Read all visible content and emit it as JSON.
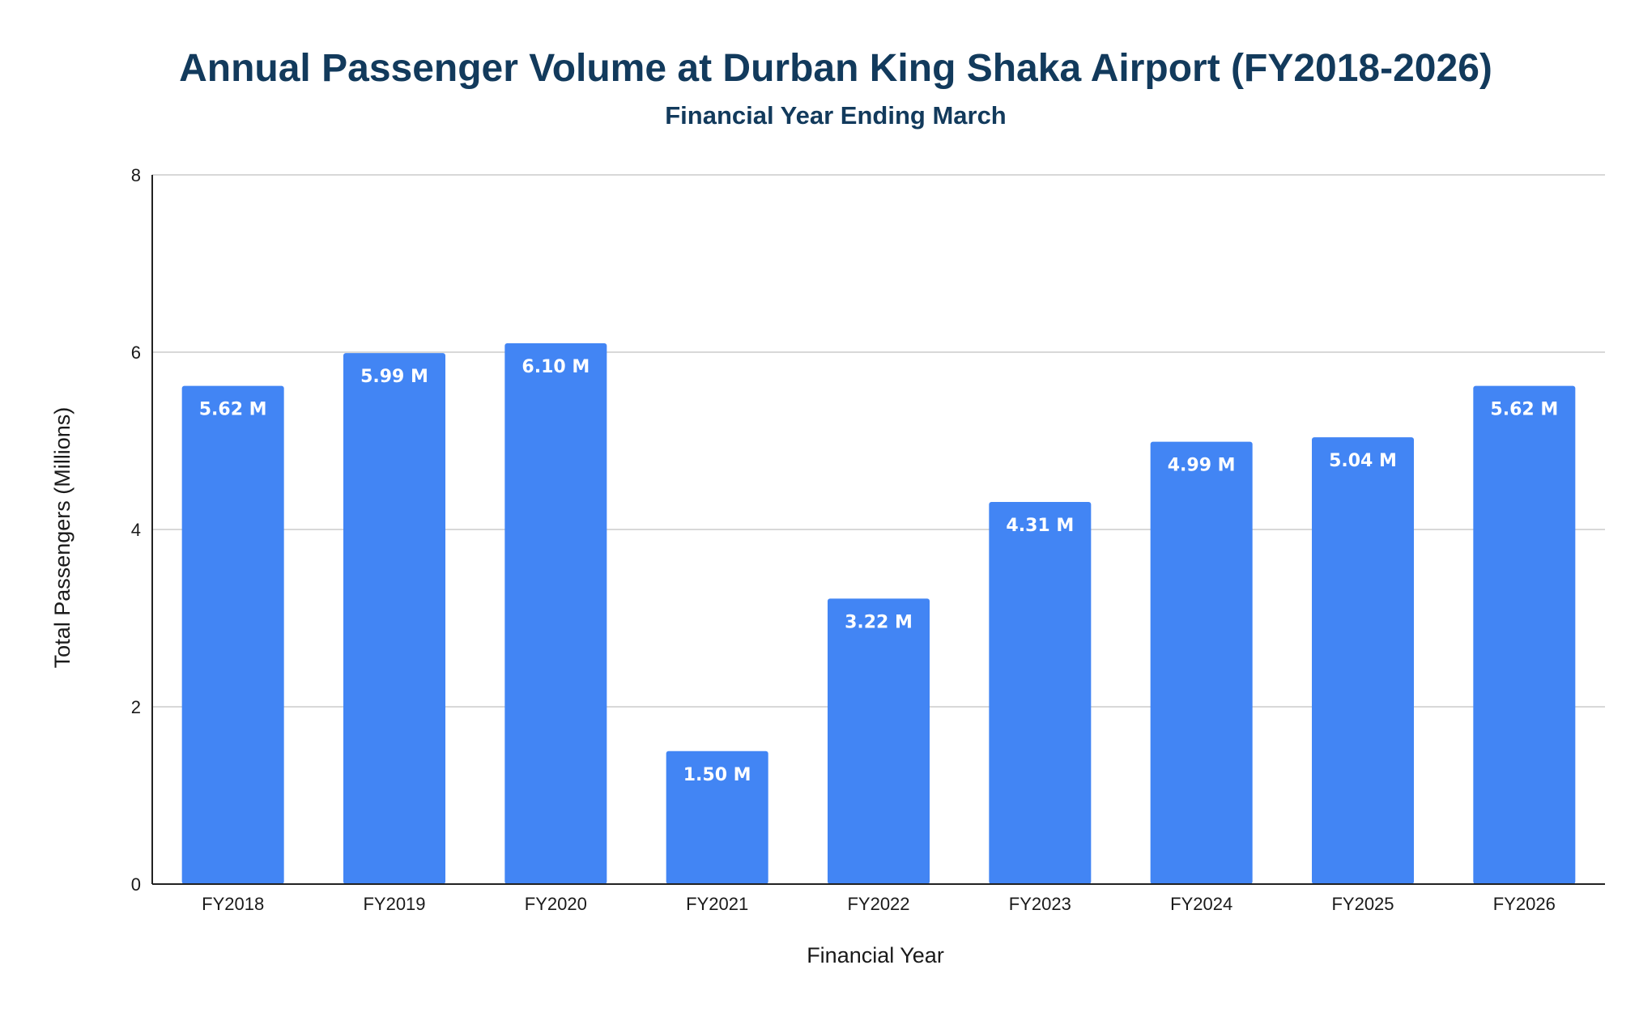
{
  "chart_data": {
    "type": "bar",
    "title": "Annual Passenger Volume at Durban King Shaka Airport (FY2018-2026)",
    "subtitle": "Financial Year Ending March",
    "xlabel": "Financial Year",
    "ylabel": "Total Passengers (Millions)",
    "ylim": [
      0,
      8
    ],
    "yticks": [
      0,
      2,
      4,
      6,
      8
    ],
    "grid": true,
    "legend": "none",
    "categories": [
      "FY2018",
      "FY2019",
      "FY2020",
      "FY2021",
      "FY2022",
      "FY2023",
      "FY2024",
      "FY2025",
      "FY2026"
    ],
    "values": [
      5.62,
      5.99,
      6.1,
      1.5,
      3.22,
      4.31,
      4.99,
      5.04,
      5.62
    ],
    "data_labels": [
      "5.62 M",
      "5.99 M",
      "6.10 M",
      "1.50 M",
      "3.22 M",
      "4.31 M",
      "4.99 M",
      "5.04 M",
      "5.62 M"
    ],
    "colors": {
      "bar": "#4285f4",
      "title": "#123a5c"
    }
  }
}
